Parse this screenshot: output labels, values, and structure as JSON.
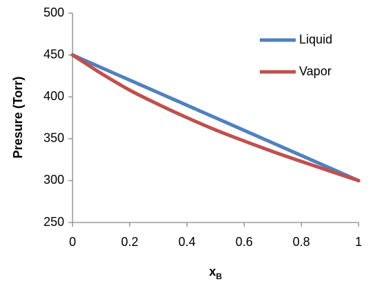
{
  "chart_data": {
    "type": "line",
    "title": "",
    "xlabel": "x",
    "xlabel_subscript": "B",
    "ylabel": "Presure (Torr)",
    "xlim": [
      0,
      1
    ],
    "ylim": [
      250,
      500
    ],
    "x_ticks": [
      "0",
      "0.2",
      "0.4",
      "0.6",
      "0.8",
      "1"
    ],
    "y_ticks": [
      "250",
      "300",
      "350",
      "400",
      "450",
      "500"
    ],
    "grid": false,
    "legend_position": "top-right",
    "series": [
      {
        "name": "Liquid",
        "color": "#4f81bd",
        "x": [
          0,
          0.1,
          0.2,
          0.3,
          0.4,
          0.5,
          0.6,
          0.7,
          0.8,
          0.9,
          1
        ],
        "y": [
          450,
          435,
          420,
          405,
          390,
          375,
          360,
          345,
          330,
          315,
          300
        ]
      },
      {
        "name": "Vapor",
        "color": "#c0504d",
        "x": [
          0,
          0.05,
          0.1,
          0.2,
          0.3,
          0.4,
          0.5,
          0.6,
          0.7,
          0.8,
          0.9,
          1
        ],
        "y": [
          450,
          439,
          428,
          408,
          391,
          375.2,
          360.5,
          347.3,
          334.7,
          322.9,
          311.4,
          300
        ]
      }
    ]
  }
}
